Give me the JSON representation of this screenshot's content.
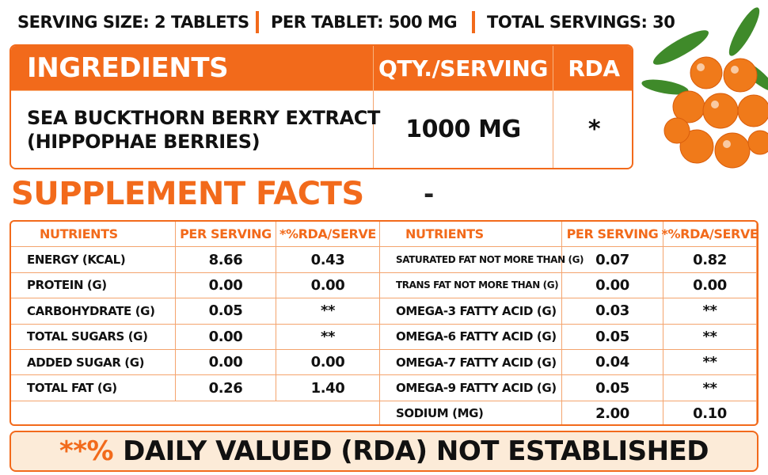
{
  "header": {
    "serving_size": "SERVING SIZE: 2 TABLETS",
    "per_tablet": "PER TABLET: 500 MG",
    "total_servings": "TOTAL SERVINGS: 30"
  },
  "ingredients": {
    "columns": [
      "INGREDIENTS",
      "QTY./SERVING",
      "RDA"
    ],
    "rows": [
      {
        "name": [
          "SEA BUCKTHORN BERRY EXTRACT",
          "(HIPPOPHAE BERRIES)"
        ],
        "qty": "1000 MG",
        "rda": "*"
      }
    ]
  },
  "facts": {
    "title": "SUPPLEMENT FACTS",
    "title_suffix": "-",
    "columns": [
      "NUTRIENTS",
      "PER SERVING",
      "*%RDA/SERVE"
    ],
    "left_rows": [
      [
        "ENERGY (KCAL)",
        "8.66",
        "0.43"
      ],
      [
        "PROTEIN (G)",
        "0.00",
        "0.00"
      ],
      [
        "CARBOHYDRATE (G)",
        "0.05",
        "**"
      ],
      [
        "TOTAL SUGARS (G)",
        "0.00",
        "**"
      ],
      [
        "ADDED SUGAR (G)",
        "0.00",
        "0.00"
      ],
      [
        "TOTAL FAT (G)",
        "0.26",
        "1.40"
      ]
    ],
    "right_rows": [
      [
        "SATURATED FAT NOT MORE THAN (G)",
        "0.07",
        "0.82"
      ],
      [
        "TRANS FAT NOT MORE THAN (G)",
        "0.00",
        "0.00"
      ],
      [
        "OMEGA-3 FATTY ACID (G)",
        "0.03",
        "**"
      ],
      [
        "OMEGA-6 FATTY ACID (G)",
        "0.05",
        "**"
      ],
      [
        "OMEGA-7 FATTY ACID (G)",
        "0.04",
        "**"
      ],
      [
        "OMEGA-9 FATTY ACID (G)",
        "0.05",
        "**"
      ],
      [
        "SODIUM (MG)",
        "2.00",
        "0.10"
      ]
    ]
  },
  "footer": {
    "marker": "**%",
    "text": "DAILY VALUED (RDA) NOT ESTABLISHED"
  }
}
